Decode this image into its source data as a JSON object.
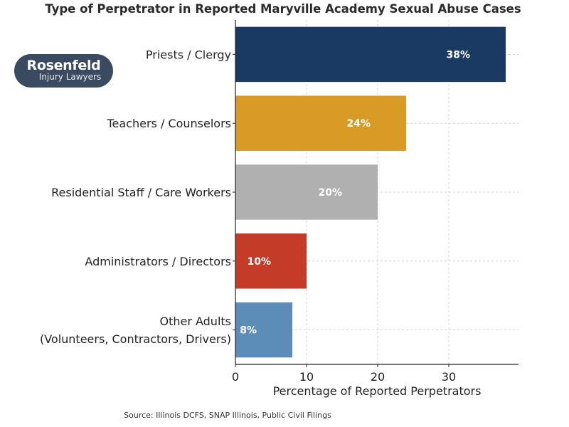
{
  "logo": {
    "line1": "Rosenfeld",
    "line2": "Injury Lawyers"
  },
  "source": "Source: Illinois DCFS, SNAP Illinois, Public Civil Filings",
  "chart_data": {
    "type": "bar",
    "orientation": "horizontal",
    "title": "Type of Perpetrator in Reported Maryville Academy Sexual Abuse Cases",
    "xlabel": "Percentage of Reported Perpetrators",
    "ylabel": "",
    "categories": [
      [
        "Priests / Clergy"
      ],
      [
        "Teachers / Counselors"
      ],
      [
        "Residential Staff / Care Workers"
      ],
      [
        "Administrators / Directors"
      ],
      [
        "Other Adults",
        "(Volunteers, Contractors, Drivers)"
      ]
    ],
    "values": [
      38,
      24,
      20,
      10,
      8
    ],
    "data_labels": [
      "38%",
      "24%",
      "20%",
      "10%",
      "8%"
    ],
    "colors": [
      "#1b3a63",
      "#d89b26",
      "#b0b0b0",
      "#c43b28",
      "#5b8db8"
    ],
    "xlim": [
      0,
      39.8
    ],
    "xticks": [
      0,
      10,
      20,
      30
    ],
    "grid": true
  }
}
